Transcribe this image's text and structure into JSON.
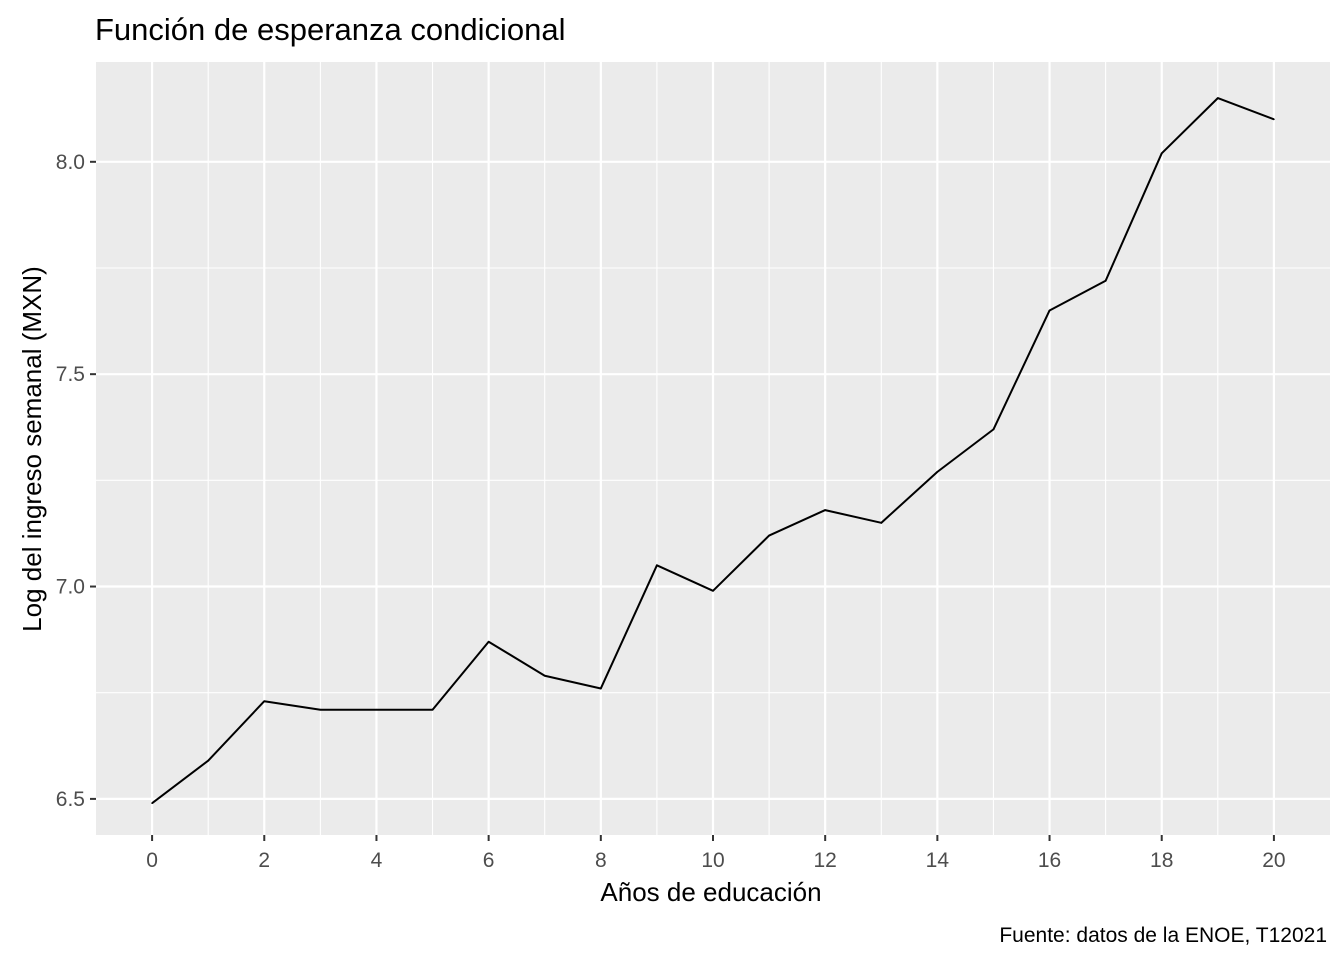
{
  "chart_data": {
    "type": "line",
    "title": "Función de esperanza condicional",
    "xlabel": "Años de educación",
    "ylabel": "Log del ingreso semanal (MXN)",
    "caption": "Fuente: datos de la ENOE, T12021",
    "x": [
      0,
      1,
      2,
      3,
      4,
      5,
      6,
      7,
      8,
      9,
      10,
      11,
      12,
      13,
      14,
      15,
      16,
      17,
      18,
      19,
      20
    ],
    "series": [
      {
        "values": [
          6.49,
          6.59,
          6.73,
          6.71,
          6.71,
          6.71,
          6.87,
          6.79,
          6.76,
          7.05,
          6.99,
          7.12,
          7.18,
          7.15,
          7.27,
          7.37,
          7.65,
          7.72,
          8.02,
          8.15,
          8.1
        ],
        "color": "#000000"
      }
    ],
    "xlim": [
      -1,
      21
    ],
    "ylim": [
      6.415,
      8.235
    ],
    "x_ticks": [
      0,
      2,
      4,
      6,
      8,
      10,
      12,
      14,
      16,
      18,
      20
    ],
    "x_tick_labels": [
      "0",
      "2",
      "4",
      "6",
      "8",
      "10",
      "12",
      "14",
      "16",
      "18",
      "20"
    ],
    "y_ticks": [
      6.5,
      7.0,
      7.5,
      8.0
    ],
    "y_tick_labels": [
      "6.5",
      "7.0",
      "7.5",
      "8.0"
    ],
    "grid": true,
    "panel_background": "#EBEBEB",
    "grid_color": "#FFFFFF"
  }
}
